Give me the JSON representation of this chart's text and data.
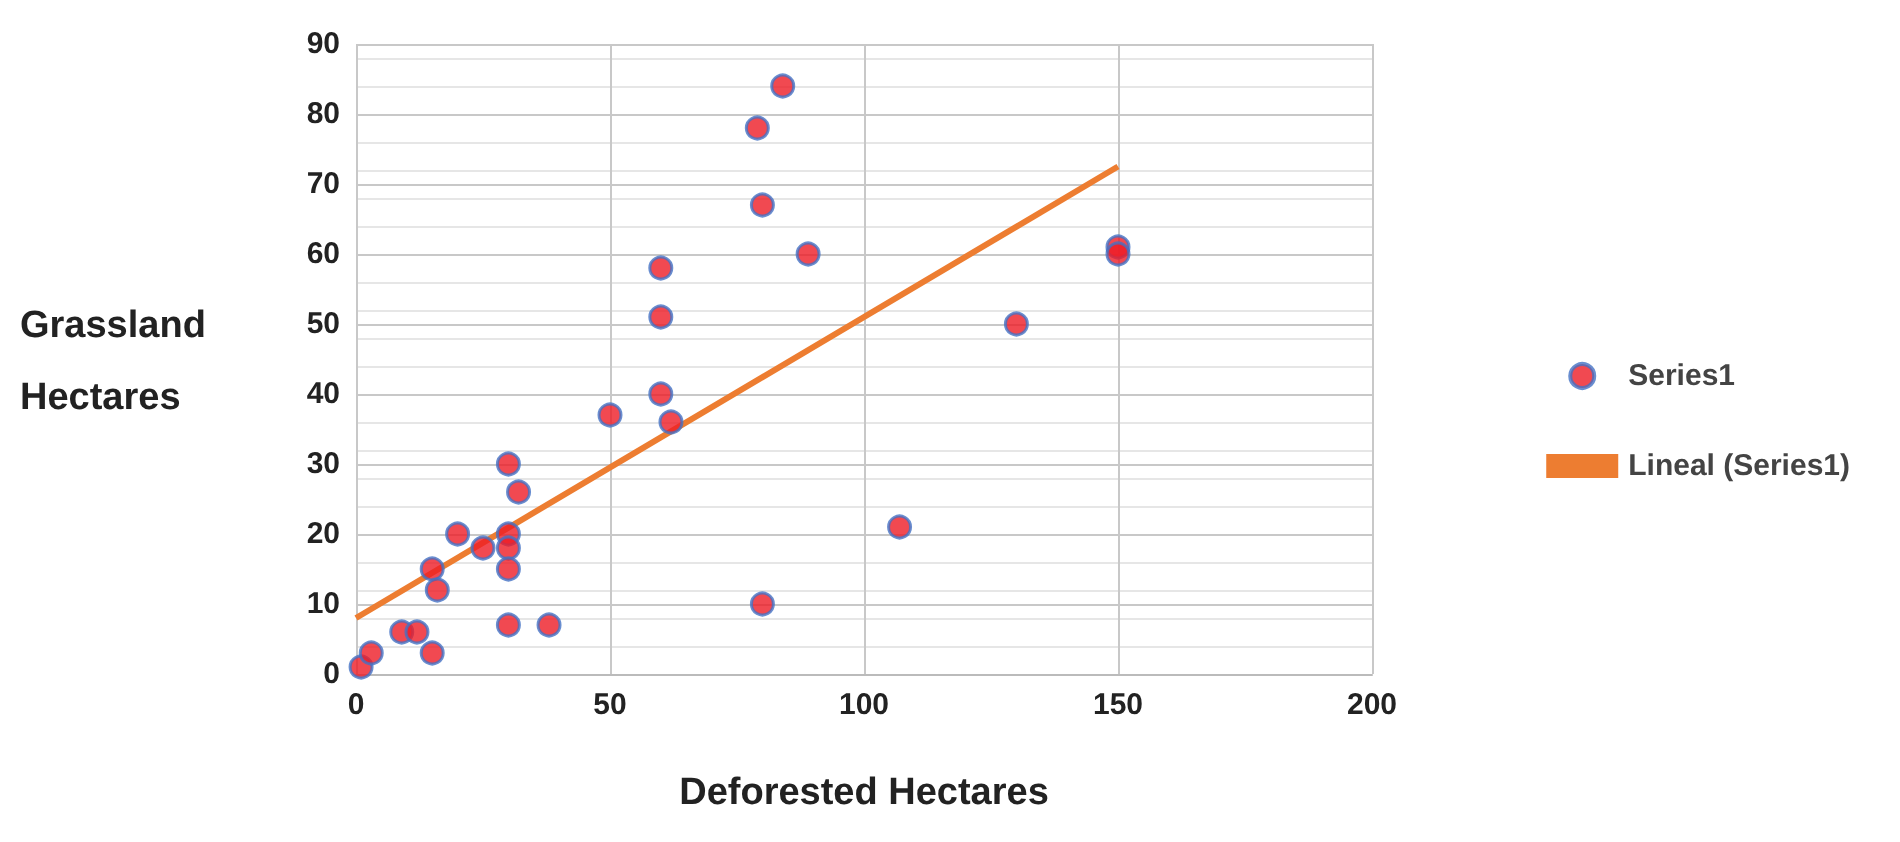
{
  "chart_data": {
    "type": "scatter",
    "xlabel": "Deforested Hectares",
    "ylabel": "Grassland Hectares",
    "xlim": [
      0,
      200
    ],
    "xticks": [
      0,
      50,
      100,
      150,
      200
    ],
    "ylim": [
      0,
      90
    ],
    "yticks": [
      0,
      10,
      20,
      30,
      40,
      50,
      60,
      70,
      80,
      90
    ],
    "grid": true,
    "legend": "right",
    "series": [
      {
        "name": "Series1",
        "marker": "circle",
        "color": "#ee1c25",
        "x": [
          1,
          3,
          9,
          12,
          15,
          15,
          16,
          20,
          25,
          30,
          30,
          30,
          30,
          30,
          32,
          38,
          50,
          60,
          60,
          60,
          62,
          79,
          80,
          80,
          84,
          89,
          107,
          130,
          150,
          150
        ],
        "values": [
          1,
          3,
          6,
          6,
          15,
          3,
          12,
          20,
          18,
          30,
          20,
          18,
          15,
          7,
          26,
          7,
          37,
          58,
          51,
          40,
          36,
          78,
          67,
          10,
          84,
          60,
          21,
          50,
          61,
          60
        ]
      },
      {
        "name": "Lineal (Series1)",
        "type": "line",
        "marker": "none",
        "color": "#ed7d31",
        "x": [
          0,
          150
        ],
        "values": [
          8,
          72.5
        ]
      }
    ]
  }
}
